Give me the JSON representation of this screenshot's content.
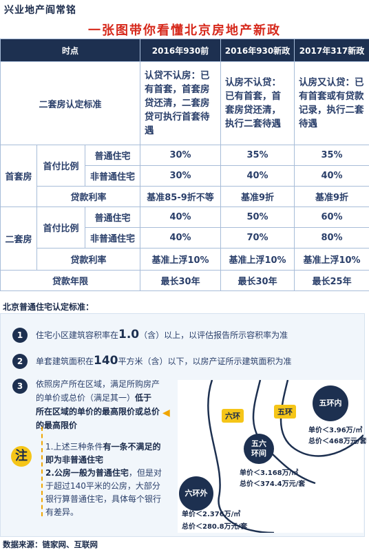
{
  "header": {
    "brand": "兴业地产阎常铭",
    "title": "一张图带你看懂北京房地产新政"
  },
  "table": {
    "columns": [
      "时点",
      "2016年930前",
      "2016年930新政",
      "2017年317新政"
    ],
    "criteria": {
      "label": "二套房认定标准",
      "values": [
        "认贷不认房：已有首套，首套房贷还清，二套房贷可执行首套待遇",
        "认房不认贷：已有首套，首套房贷还清，执行二套待遇",
        "认房又认贷：已有首套或有贷款记录，执行二套待遇"
      ]
    },
    "first_home": {
      "label": "首套房",
      "down_label": "首付比例",
      "ordinary": {
        "label": "普通住宅",
        "values": [
          "30%",
          "35%",
          "35%"
        ]
      },
      "non_ordinary": {
        "label": "非普通住宅",
        "values": [
          "30%",
          "40%",
          "40%"
        ]
      },
      "rate": {
        "label": "贷款利率",
        "values": [
          "基准85-9折不等",
          "基准9折",
          "基准9折"
        ]
      }
    },
    "second_home": {
      "label": "二套房",
      "down_label": "首付比例",
      "ordinary": {
        "label": "普通住宅",
        "values": [
          "40%",
          "50%",
          "60%"
        ]
      },
      "non_ordinary": {
        "label": "非普通住宅",
        "values": [
          "40%",
          "70%",
          "80%"
        ]
      },
      "rate": {
        "label": "贷款利率",
        "values": [
          "基准上浮10%",
          "基准上浮10%",
          "基准上浮10%"
        ]
      }
    },
    "term": {
      "label": "贷款年限",
      "values": [
        "最长30年",
        "最长30年",
        "最长25年"
      ]
    }
  },
  "standard": {
    "title": "北京普通住宅认定标准：",
    "item1": {
      "num": "1",
      "pre": "住宅小区建筑容积率在",
      "big": "1.0",
      "post": "（含）以上，以评估报告所示容积率为准"
    },
    "item2": {
      "num": "2",
      "pre": "单套建筑面积在",
      "big": "140",
      "post": "平方米（含）以下，以房产证所示建筑面积为准"
    },
    "item3": {
      "num": "3",
      "pre": "依照房产所在区域，满足所购房产的单价或总价（满足其一）",
      "strong": "低于所在区域的单价的最高限价或总价的最高限价"
    },
    "note": {
      "badge": "注",
      "line1_pre": "1.上述三种条件",
      "line1_strong": "有一条不满足的即为非普通住宅",
      "line2_strong": "2.公房一般为普通住宅",
      "line2_post": "，但是对于超过140平米的公房，大部分银行算普通住宅，具体每个银行有差异。"
    }
  },
  "map": {
    "ring6": "六环",
    "ring5": "五环",
    "zone_inner": {
      "label": "五环内",
      "unit": "单价＜3.96万/㎡",
      "total": "总价＜468万元/套"
    },
    "zone_mid": {
      "label": "五六环间",
      "unit": "单价＜3.168万/㎡",
      "total": "总价＜374.4万元/套"
    },
    "zone_outer": {
      "label": "六环外",
      "unit": "单价＜2.376万/㎡",
      "total": "总价＜280.8万元/套"
    }
  },
  "source": "数据来源：链家网、互联网",
  "colors": {
    "navy": "#1d3050",
    "red": "#d6281b",
    "yellow": "#f5c518",
    "border": "#a7bcd8"
  }
}
